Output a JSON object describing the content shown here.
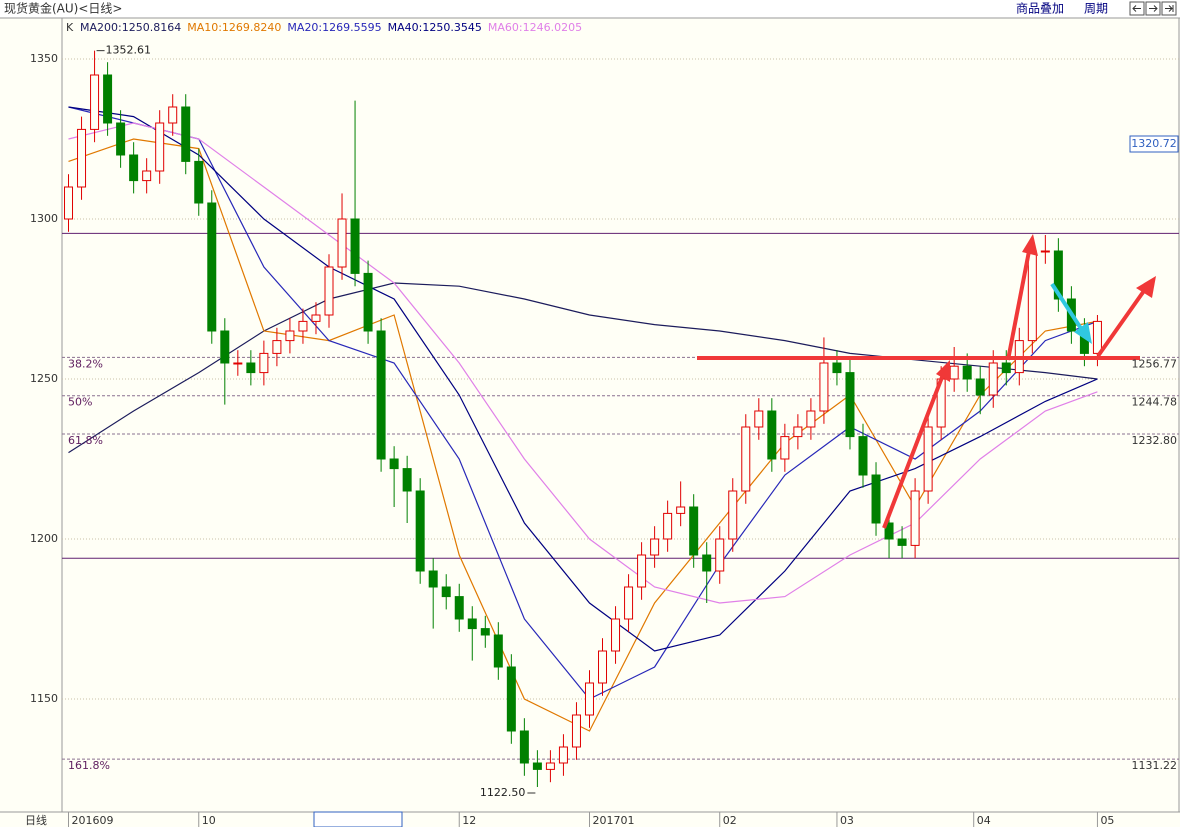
{
  "chart_data": {
    "type": "candlestick",
    "title": "现货黄金(AU)<日线>",
    "legend_lead": "K",
    "buttons": [
      "商品叠加",
      "周期"
    ],
    "period_label": "日线",
    "current_price_label": "1320.72",
    "open": [
      1300,
      1310,
      1328,
      1345,
      1330,
      1320,
      1312,
      1315,
      1330,
      1335,
      1318,
      1305,
      1265,
      1255,
      1255,
      1252,
      1258,
      1262,
      1265,
      1268,
      1270,
      1285,
      1300,
      1283,
      1265,
      1225,
      1222,
      1215,
      1190,
      1185,
      1182,
      1175,
      1172,
      1170,
      1160,
      1140,
      1130,
      1128,
      1130,
      1135,
      1145,
      1155,
      1165,
      1175,
      1185,
      1195,
      1200,
      1208,
      1210,
      1195,
      1190,
      1200,
      1215,
      1235,
      1240,
      1225,
      1232,
      1235,
      1240,
      1255,
      1252,
      1232,
      1220,
      1205,
      1200,
      1198,
      1215,
      1235,
      1250,
      1254,
      1250,
      1245,
      1255,
      1252,
      1262,
      1290,
      1290,
      1275,
      1265,
      1258
    ],
    "high": [
      1314,
      1332,
      1352.61,
      1349,
      1334,
      1324,
      1319,
      1334,
      1339,
      1339,
      1322,
      1309,
      1269,
      1259,
      1259,
      1262,
      1266,
      1269,
      1272,
      1274,
      1289,
      1308,
      1337,
      1287,
      1269,
      1229,
      1226,
      1219,
      1194,
      1189,
      1186,
      1179,
      1176,
      1174,
      1164,
      1144,
      1134,
      1134,
      1139,
      1149,
      1159,
      1169,
      1179,
      1189,
      1199,
      1204,
      1212,
      1218,
      1214,
      1199,
      1204,
      1219,
      1239,
      1244,
      1244,
      1236,
      1239,
      1244,
      1263,
      1259,
      1256,
      1236,
      1224,
      1209,
      1204,
      1219,
      1239,
      1254,
      1260,
      1258,
      1254,
      1259,
      1259,
      1266,
      1294,
      1295,
      1294,
      1279,
      1269,
      1270
    ],
    "low": [
      1296,
      1306,
      1324,
      1326,
      1316,
      1308,
      1308,
      1311,
      1326,
      1314,
      1301,
      1261,
      1242,
      1251,
      1248,
      1248,
      1254,
      1258,
      1261,
      1264,
      1266,
      1281,
      1279,
      1261,
      1221,
      1210,
      1205,
      1186,
      1172,
      1178,
      1171,
      1162,
      1166,
      1156,
      1136,
      1126,
      1122.5,
      1124,
      1126,
      1131,
      1141,
      1151,
      1161,
      1171,
      1181,
      1191,
      1196,
      1204,
      1191,
      1180,
      1186,
      1196,
      1211,
      1231,
      1221,
      1221,
      1228,
      1231,
      1236,
      1248,
      1228,
      1216,
      1201,
      1194,
      1194,
      1194,
      1211,
      1231,
      1246,
      1246,
      1239,
      1241,
      1248,
      1248,
      1258,
      1286,
      1271,
      1261,
      1254,
      1254
    ],
    "close": [
      1310,
      1328,
      1345,
      1330,
      1320,
      1312,
      1315,
      1330,
      1335,
      1318,
      1305,
      1265,
      1255,
      1255,
      1252,
      1258,
      1262,
      1265,
      1268,
      1270,
      1285,
      1300,
      1283,
      1265,
      1225,
      1222,
      1215,
      1190,
      1185,
      1182,
      1175,
      1172,
      1170,
      1160,
      1140,
      1130,
      1128,
      1130,
      1135,
      1145,
      1155,
      1165,
      1175,
      1185,
      1195,
      1200,
      1208,
      1210,
      1195,
      1190,
      1200,
      1215,
      1235,
      1240,
      1225,
      1232,
      1235,
      1240,
      1255,
      1252,
      1232,
      1220,
      1205,
      1200,
      1198,
      1215,
      1235,
      1250,
      1254,
      1250,
      1245,
      1255,
      1252,
      1262,
      1290,
      1290,
      1275,
      1265,
      1258,
      1268
    ],
    "up_color": "#e00000",
    "down_color": "#008000",
    "ma_x": [
      0,
      5,
      10,
      15,
      20,
      25,
      30,
      35,
      40,
      45,
      50,
      55,
      60,
      65,
      70,
      75,
      79
    ],
    "series": [
      {
        "name": "MA200:1250.8164",
        "color": "#1c1c5c",
        "values": [
          1227,
          1240,
          1252,
          1265,
          1275,
          1280,
          1279,
          1275,
          1270,
          1267,
          1265,
          1262,
          1258,
          1256,
          1254,
          1252,
          1250
        ]
      },
      {
        "name": "MA10:1269.8240",
        "color": "#e07800",
        "values": [
          1318,
          1325,
          1322,
          1265,
          1262,
          1270,
          1195,
          1150,
          1140,
          1180,
          1205,
          1230,
          1245,
          1210,
          1245,
          1265,
          1268
        ]
      },
      {
        "name": "MA20:1269.5595",
        "color": "#2828b8",
        "values": [
          1335,
          1330,
          1325,
          1285,
          1262,
          1255,
          1225,
          1175,
          1150,
          1160,
          1192,
          1220,
          1235,
          1225,
          1240,
          1262,
          1268
        ]
      },
      {
        "name": "MA40:1250.3545",
        "color": "#000080",
        "values": [
          1335,
          1332,
          1320,
          1300,
          1285,
          1275,
          1245,
          1205,
          1180,
          1165,
          1170,
          1190,
          1215,
          1222,
          1232,
          1243,
          1250
        ]
      },
      {
        "name": "MA60:1246.0205",
        "color": "#e080e8",
        "values": [
          1325,
          1330,
          1325,
          1310,
          1295,
          1280,
          1255,
          1225,
          1200,
          1185,
          1180,
          1182,
          1195,
          1205,
          1225,
          1240,
          1246
        ]
      }
    ],
    "fib_levels": [
      {
        "value": 1256.77,
        "value_label": "1256.77",
        "label": "38.2%"
      },
      {
        "value": 1244.78,
        "value_label": "1244.78",
        "label": "50%"
      },
      {
        "value": 1232.8,
        "value_label": "1232.80",
        "label": "61.8%"
      },
      {
        "value": 1131.22,
        "value_label": "1131.22",
        "label": "161.8%"
      }
    ],
    "hlines": [
      1295.5,
      1194
    ],
    "high_mark": {
      "index": 2,
      "value": 1352.61
    },
    "low_mark": {
      "index": 36,
      "value": 1122.5,
      "label": "1122.50"
    },
    "xlim": [
      -0.5,
      81.5
    ],
    "xticks": [
      {
        "value": 0,
        "label": "201609"
      },
      {
        "value": 10,
        "label": "10"
      },
      {
        "value": 30,
        "label": "12"
      },
      {
        "value": 40,
        "label": "201701"
      },
      {
        "value": 50,
        "label": "02"
      },
      {
        "value": 59,
        "label": "03"
      },
      {
        "value": 69.5,
        "label": "04"
      },
      {
        "value": 79,
        "label": "05"
      }
    ],
    "ylim": [
      1115.3125,
      1362.1875
    ],
    "yticks": [
      1150,
      1200,
      1250,
      1300,
      1350
    ],
    "grid": true
  }
}
